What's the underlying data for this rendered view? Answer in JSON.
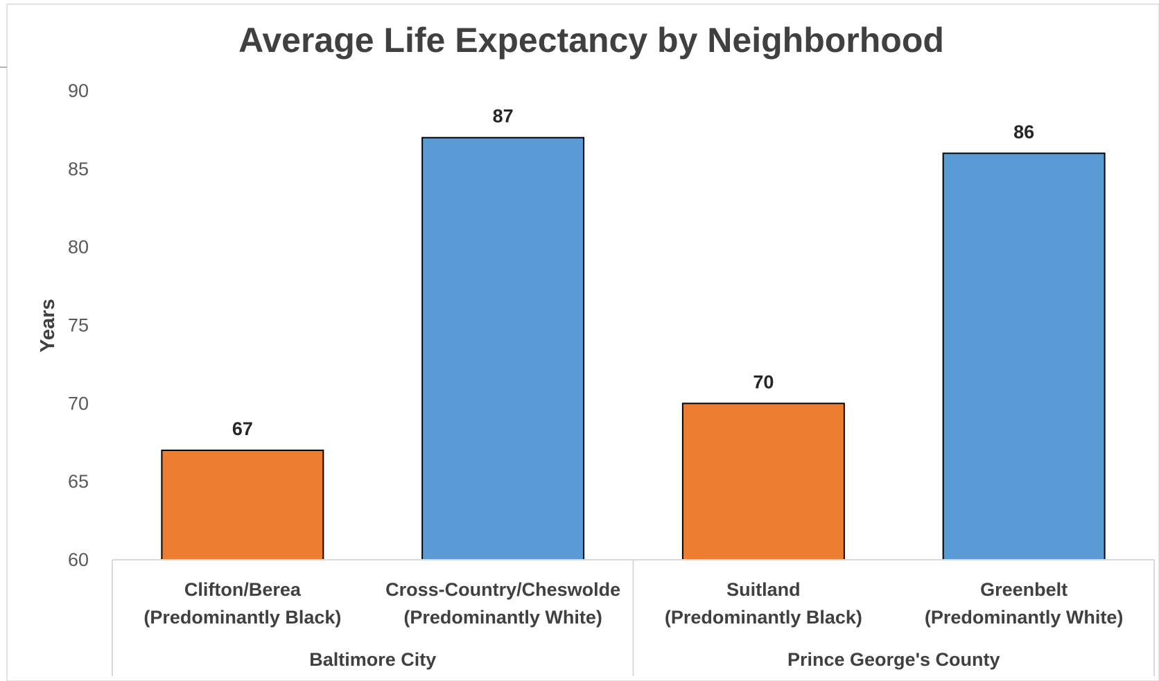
{
  "chart_data": {
    "type": "bar",
    "title": "Average Life Expectancy by Neighborhood",
    "ylabel": "Years",
    "xlabel": "",
    "ylim": [
      60,
      90
    ],
    "yticks": [
      "60",
      "65",
      "70",
      "75",
      "80",
      "85",
      "90"
    ],
    "grid": false,
    "legend": "none",
    "categories": [
      {
        "line1": "Clifton/Berea",
        "line2": "(Predominantly Black)",
        "group": 0
      },
      {
        "line1": "Cross-Country/Cheswolde",
        "line2": "(Predominantly White)",
        "group": 0
      },
      {
        "line1": "Suitland",
        "line2": "(Predominantly Black)",
        "group": 1
      },
      {
        "line1": "Greenbelt",
        "line2": "(Predominantly White)",
        "group": 1
      }
    ],
    "groups": [
      "Baltimore City",
      "Prince George's County"
    ],
    "values": [
      67,
      87,
      70,
      86
    ],
    "value_labels": [
      "67",
      "87",
      "70",
      "86"
    ],
    "colors": [
      "#ED7D31",
      "#5B9BD5",
      "#ED7D31",
      "#5B9BD5"
    ]
  }
}
